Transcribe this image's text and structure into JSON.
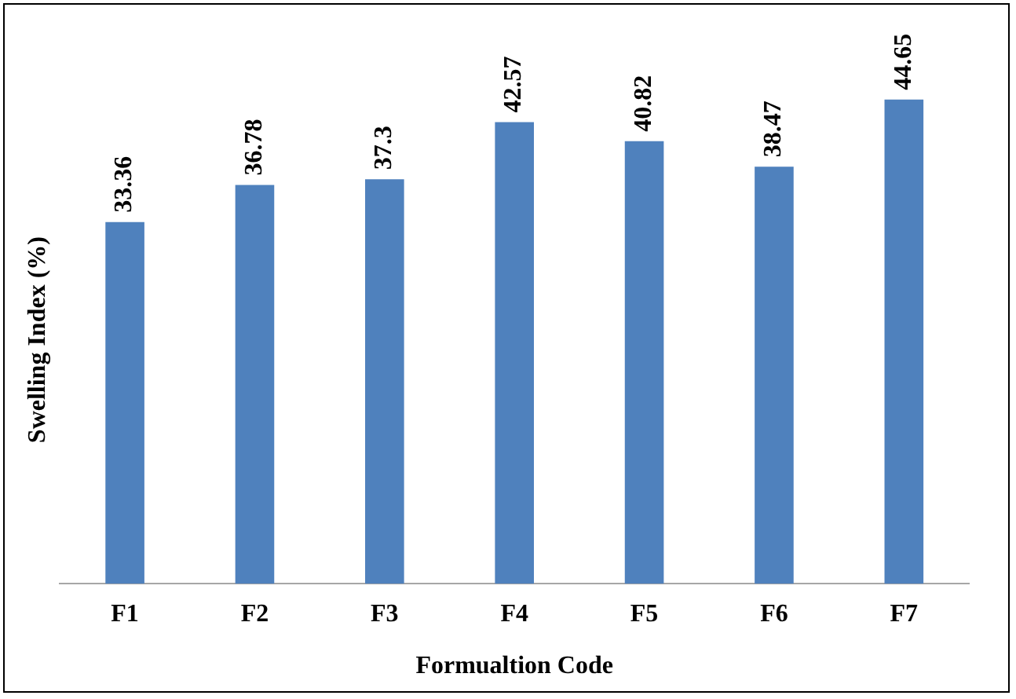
{
  "chart_data": {
    "type": "bar",
    "xlabel": "Formualtion Code",
    "ylabel": "Swelling Index (%)",
    "categories": [
      "F1",
      "F2",
      "F3",
      "F4",
      "F5",
      "F6",
      "F7"
    ],
    "values": [
      33.36,
      36.78,
      37.3,
      42.57,
      40.82,
      38.47,
      44.65
    ],
    "color": "#4f81bd",
    "ylim": [
      0,
      45
    ],
    "data_labels": true,
    "grid": false,
    "legend": false
  }
}
